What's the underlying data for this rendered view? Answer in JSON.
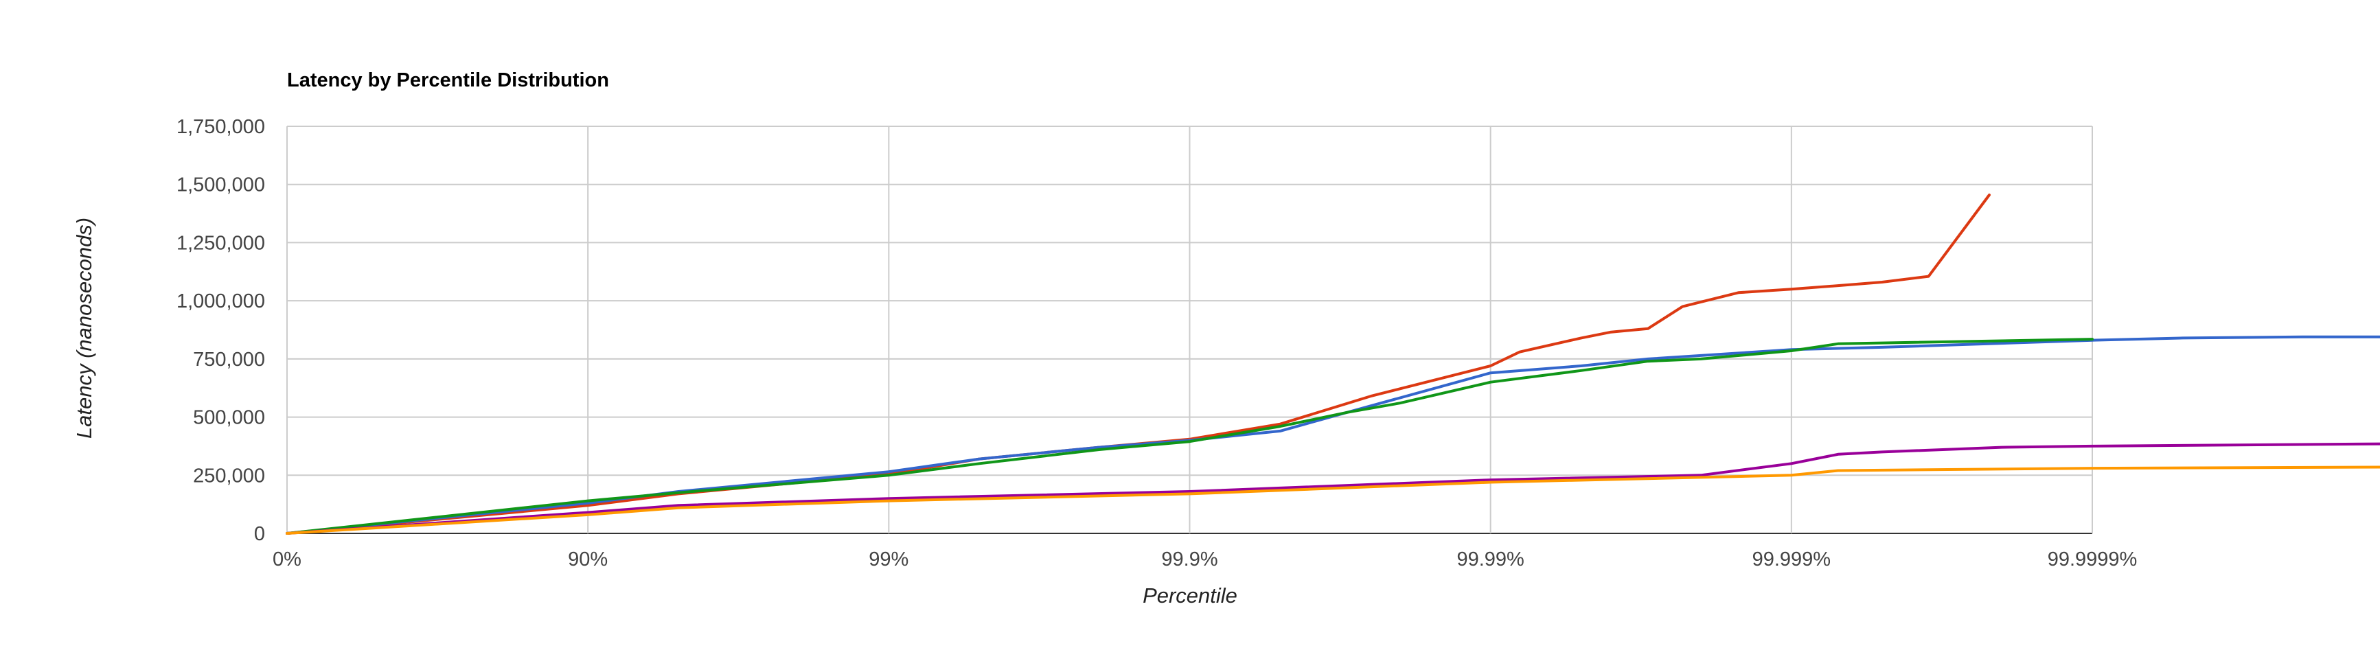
{
  "chart_data": {
    "type": "line",
    "title": "Latency by Percentile Distribution",
    "xlabel": "Percentile",
    "ylabel": "Latency (nanoseconds)",
    "x_scale": "log of 1/(1 - percentile)",
    "x_ticks": [
      "0%",
      "90%",
      "99%",
      "99.9%",
      "99.99%",
      "99.999%",
      "99.9999%"
    ],
    "y_ticks": [
      "0",
      "250,000",
      "500,000",
      "750,000",
      "1,000,000",
      "1,250,000",
      "1,500,000",
      "1,750,000"
    ],
    "ylim": [
      0,
      1750000
    ],
    "grid": true,
    "legend": "none",
    "series": [
      {
        "color": "#dc3912",
        "points": [
          [
            "0%",
            0
          ],
          [
            "90%",
            120000
          ],
          [
            "95%",
            170000
          ],
          [
            "99%",
            255000
          ],
          [
            "99.5%",
            320000
          ],
          [
            "99.8%",
            370000
          ],
          [
            "99.9%",
            405000
          ],
          [
            "99.95%",
            470000
          ],
          [
            "99.975%",
            590000
          ],
          [
            "99.99%",
            720000
          ],
          [
            "99.992%",
            780000
          ],
          [
            "99.995%",
            840000
          ],
          [
            "99.996%",
            865000
          ],
          [
            "99.997%",
            880000
          ],
          [
            "99.9977%",
            975000
          ],
          [
            "99.9985%",
            1035000
          ],
          [
            "99.999%",
            1050000
          ],
          [
            "99.9993%",
            1065000
          ],
          [
            "99.9995%",
            1080000
          ],
          [
            "99.99965%",
            1105000
          ],
          [
            "99.99978%",
            1455000
          ]
        ]
      },
      {
        "color": "#3366cc",
        "points": [
          [
            "0%",
            0
          ],
          [
            "90%",
            130000
          ],
          [
            "95%",
            180000
          ],
          [
            "99%",
            265000
          ],
          [
            "99.5%",
            320000
          ],
          [
            "99.8%",
            370000
          ],
          [
            "99.9%",
            400000
          ],
          [
            "99.95%",
            440000
          ],
          [
            "99.97%",
            520000
          ],
          [
            "99.99%",
            690000
          ],
          [
            "99.995%",
            720000
          ],
          [
            "99.997%",
            750000
          ],
          [
            "99.999%",
            790000
          ],
          [
            "99.9995%",
            800000
          ],
          [
            "99.9999%",
            830000
          ],
          [
            "99.99995%",
            840000
          ],
          [
            "99.99998%",
            845000
          ],
          [
            "99.99999%",
            845000
          ]
        ]
      },
      {
        "color": "#109618",
        "points": [
          [
            "0%",
            0
          ],
          [
            "90%",
            140000
          ],
          [
            "95%",
            175000
          ],
          [
            "99%",
            250000
          ],
          [
            "99.5%",
            300000
          ],
          [
            "99.8%",
            360000
          ],
          [
            "99.9%",
            395000
          ],
          [
            "99.95%",
            460000
          ],
          [
            "99.97%",
            520000
          ],
          [
            "99.98%",
            560000
          ],
          [
            "99.99%",
            650000
          ],
          [
            "99.995%",
            700000
          ],
          [
            "99.997%",
            740000
          ],
          [
            "99.998%",
            750000
          ],
          [
            "99.999%",
            785000
          ],
          [
            "99.9993%",
            815000
          ],
          [
            "99.9999%",
            835000
          ]
        ]
      },
      {
        "color": "#990099",
        "points": [
          [
            "0%",
            0
          ],
          [
            "90%",
            90000
          ],
          [
            "95%",
            120000
          ],
          [
            "99%",
            150000
          ],
          [
            "99.9%",
            180000
          ],
          [
            "99.99%",
            230000
          ],
          [
            "99.998%",
            250000
          ],
          [
            "99.999%",
            300000
          ],
          [
            "99.9993%",
            340000
          ],
          [
            "99.9995%",
            350000
          ],
          [
            "99.9998%",
            370000
          ],
          [
            "99.9999%",
            375000
          ],
          [
            "99.99999%",
            385000
          ]
        ]
      },
      {
        "color": "#ff9900",
        "points": [
          [
            "0%",
            0
          ],
          [
            "90%",
            80000
          ],
          [
            "95%",
            110000
          ],
          [
            "99%",
            140000
          ],
          [
            "99.9%",
            170000
          ],
          [
            "99.99%",
            220000
          ],
          [
            "99.999%",
            250000
          ],
          [
            "99.9993%",
            270000
          ],
          [
            "99.9999%",
            280000
          ],
          [
            "99.99999%",
            285000
          ]
        ]
      }
    ]
  }
}
